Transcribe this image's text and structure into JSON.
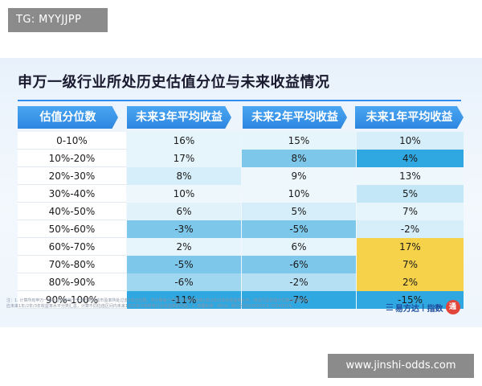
{
  "overlay_tag": "TG: MYYJJPP",
  "title": "申万一级行业所处历史估值分位与未来收益情况",
  "headers": [
    "估值分位数",
    "未来3年平均收益",
    "未来2年平均收益",
    "未来1年平均收益"
  ],
  "rows": [
    {
      "label": "0-10%",
      "y3": "16%",
      "y2": "15%",
      "y1": "10%"
    },
    {
      "label": "10%-20%",
      "y3": "17%",
      "y2": "8%",
      "y1": "4%"
    },
    {
      "label": "20%-30%",
      "y3": "8%",
      "y2": "9%",
      "y1": "13%"
    },
    {
      "label": "30%-40%",
      "y3": "10%",
      "y2": "10%",
      "y1": "5%"
    },
    {
      "label": "40%-50%",
      "y3": "6%",
      "y2": "5%",
      "y1": "7%"
    },
    {
      "label": "50%-60%",
      "y3": "-3%",
      "y2": "-5%",
      "y1": "-2%"
    },
    {
      "label": "60%-70%",
      "y3": "2%",
      "y2": "6%",
      "y1": "17%"
    },
    {
      "label": "70%-80%",
      "y3": "-5%",
      "y2": "-6%",
      "y1": "7%"
    },
    {
      "label": "80%-90%",
      "y3": "-6%",
      "y2": "-2%",
      "y1": "2%"
    },
    {
      "label": "90%-100%",
      "y3": "-11%",
      "y2": "-7%",
      "y1": "-15%"
    }
  ],
  "cell_colors": {
    "y3": [
      "#e6f4fb",
      "#e6f4fb",
      "#d6eef9",
      "#eef8fc",
      "#e1f2fa",
      "#7dc7ea",
      "#e6f4fb",
      "#7dc7ea",
      "#9fd6f0",
      "#2fa7e0"
    ],
    "y2": [
      "#e6f4fb",
      "#7dc7ea",
      "#eef8fc",
      "#eef8fc",
      "#d6eef9",
      "#7dc7ea",
      "#e6f4fb",
      "#7dc7ea",
      "#b5e0f4",
      "#2fa7e0"
    ],
    "y1": [
      "#d6eef9",
      "#2fa7e0",
      "#eef8fc",
      "#c4e7f7",
      "#e6f4fb",
      "#d6eef9",
      "#f5d24a",
      "#f5d24a",
      "#f5d24a",
      "#2fa7e0"
    ]
  },
  "footnote": "注：1. 计算所有申万一级行业指数每个交易日的滚动市盈率所处过去5年分位数，并计算每个交易日对应的未来1年/2年/3年的收益率水平，将全行业估值分位数中位数与对应未来1年/2年/3年收益率水平分类汇总，计算不同估值区间内未来1年/2年/3年所有行业收益率的均值；2. 数据来源：Wind，统计区间为2010/1/1-2024/3/15。",
  "brand": {
    "name": "易方达",
    "sub": "指数",
    "seal": "通"
  },
  "watermark": "www.jinshi-odds.com"
}
